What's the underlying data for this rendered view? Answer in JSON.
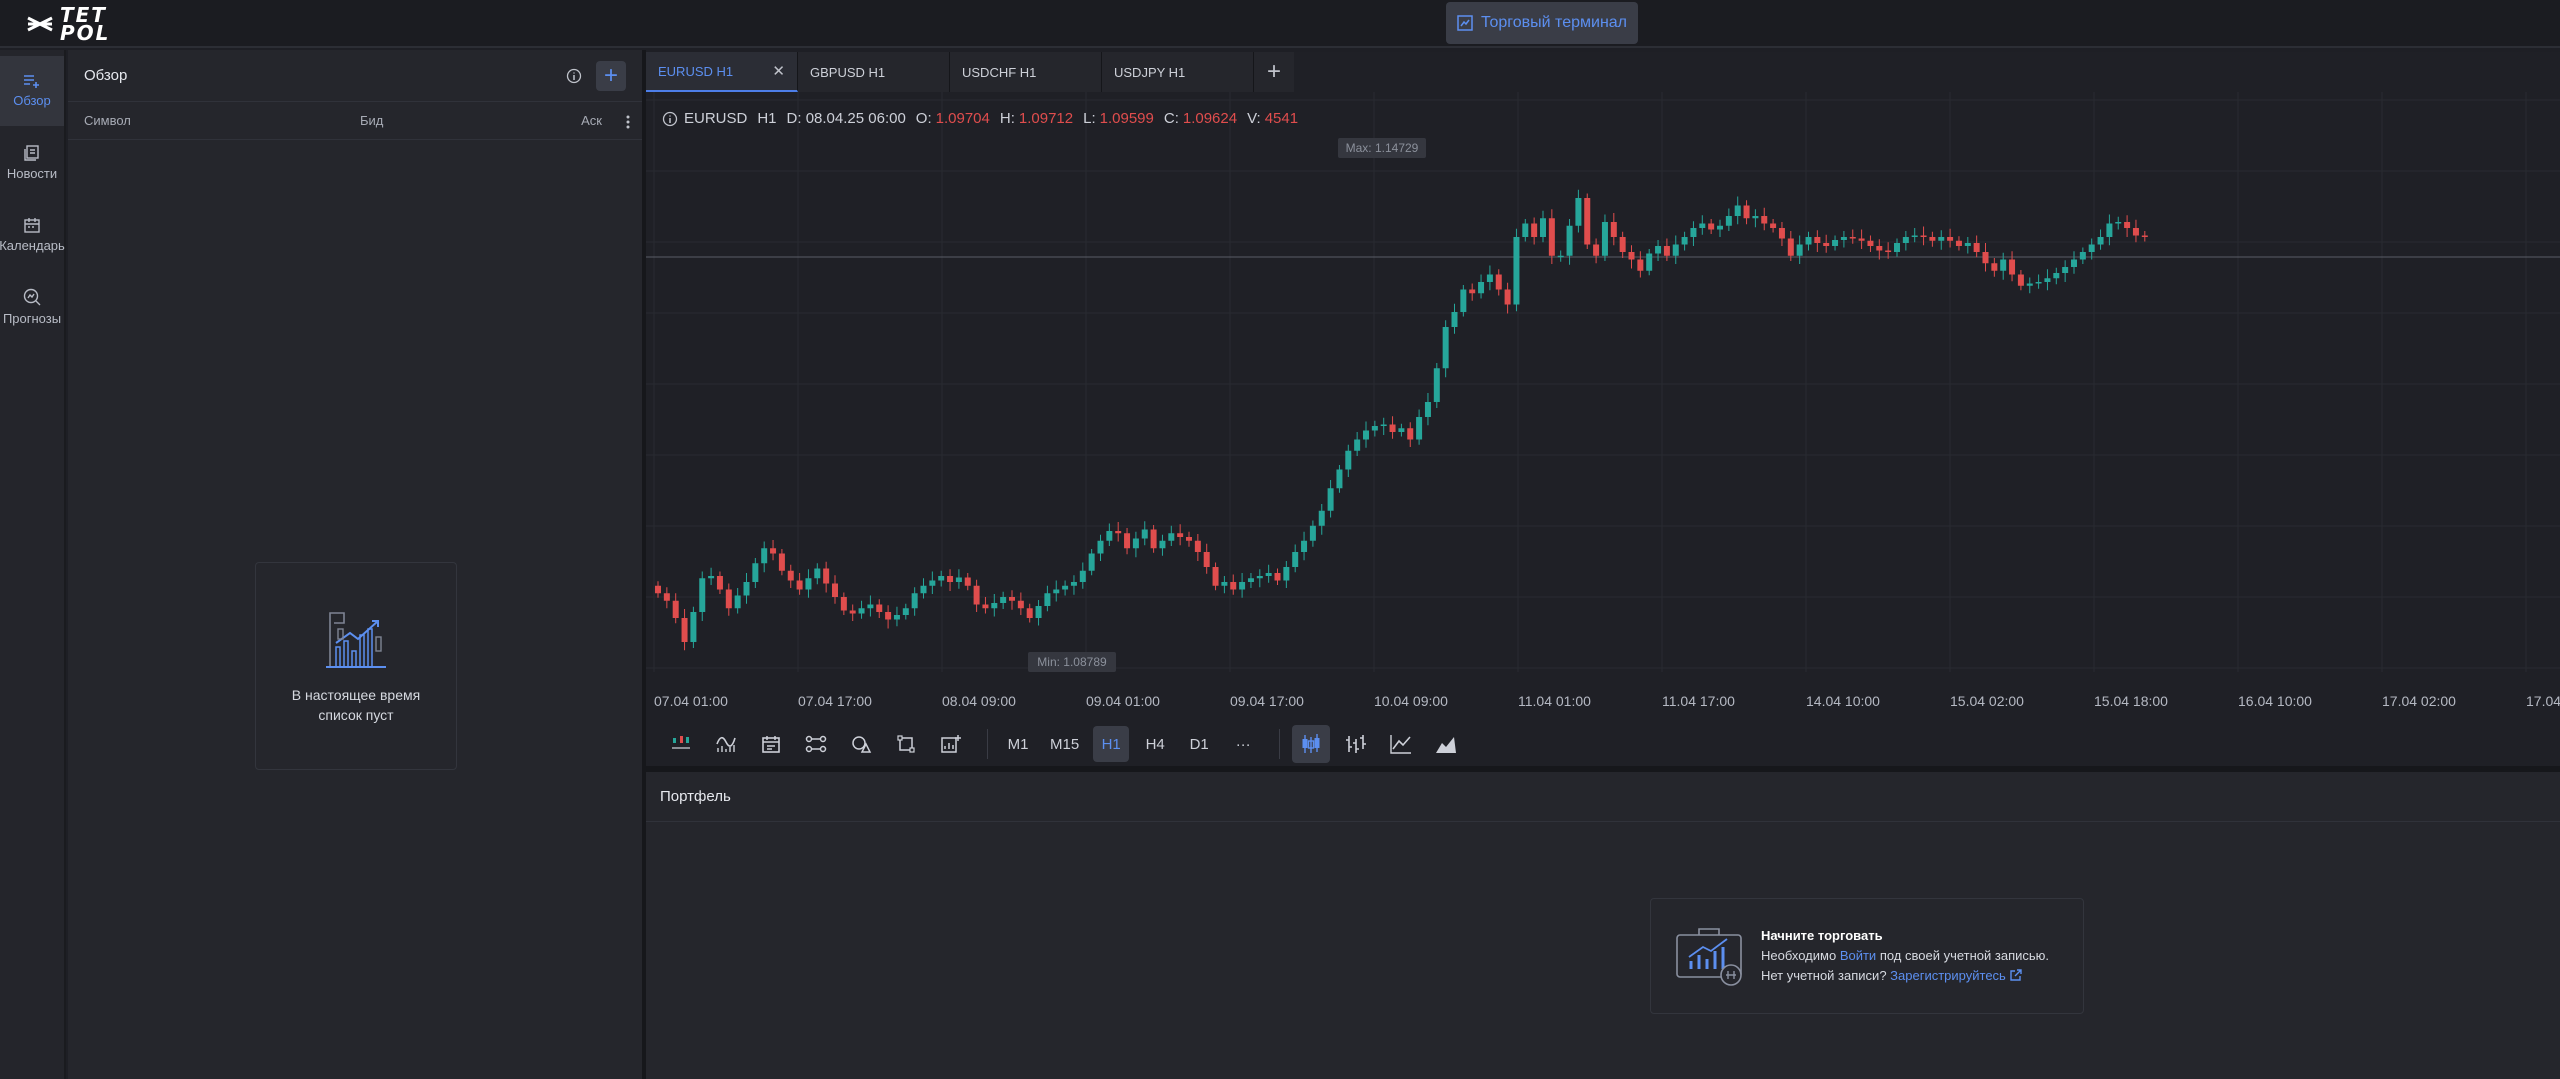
{
  "app": {
    "logo_line1": "TET",
    "logo_line2": "POL",
    "terminal_button": "Торговый терминал"
  },
  "nav": [
    {
      "label": "Обзор",
      "icon": "list-add-icon",
      "active": true
    },
    {
      "label": "Новости",
      "icon": "news-icon",
      "active": false
    },
    {
      "label": "Календарь",
      "icon": "calendar-icon",
      "active": false
    },
    {
      "label": "Прогнозы",
      "icon": "forecast-icon",
      "active": false
    }
  ],
  "watchlist": {
    "title": "Обзор",
    "columns": {
      "symbol": "Символ",
      "bid": "Бид",
      "ask": "Аск"
    },
    "empty_line1": "В настоящее время",
    "empty_line2": "список пуст"
  },
  "tabs": [
    {
      "label": "EURUSD H1",
      "active": true,
      "closable": true
    },
    {
      "label": "GBPUSD H1",
      "active": false,
      "closable": false
    },
    {
      "label": "USDCHF H1",
      "active": false,
      "closable": false
    },
    {
      "label": "USDJPY H1",
      "active": false,
      "closable": false
    }
  ],
  "ohlc": {
    "symbol": "EURUSD",
    "timeframe": "H1",
    "date": "D: 08.04.25 06:00",
    "o_label": "O:",
    "o": "1.09704",
    "h_label": "H:",
    "h": "1.09712",
    "l_label": "L:",
    "l": "1.09599",
    "c_label": "C:",
    "c": "1.09624",
    "v_label": "V:",
    "v": "4541"
  },
  "chart_data": {
    "type": "candlestick",
    "max_label": "Max: 1.14729",
    "min_label": "Min: 1.08789",
    "x_ticks": [
      "07.04 01:00",
      "07.04 17:00",
      "08.04 09:00",
      "09.04 01:00",
      "09.04 17:00",
      "10.04 09:00",
      "11.04 01:00",
      "11.04 17:00",
      "14.04 10:00",
      "15.04 02:00",
      "15.04 18:00",
      "16.04 10:00",
      "17.04 02:00",
      "17.04"
    ],
    "close": [
      1.0945,
      1.0935,
      1.0912,
      1.088,
      1.092,
      1.0965,
      1.0968,
      1.095,
      1.0925,
      1.0942,
      1.096,
      1.0985,
      1.1005,
      1.0998,
      1.0975,
      1.0962,
      1.095,
      1.0965,
      1.0978,
      1.0958,
      1.094,
      1.0922,
      1.0918,
      1.0925,
      1.093,
      1.092,
      1.091,
      1.0916,
      1.0925,
      1.0945,
      1.0955,
      1.0962,
      1.0968,
      1.096,
      1.0966,
      1.0955,
      1.093,
      1.0925,
      1.0932,
      1.094,
      1.0935,
      1.0925,
      1.0912,
      1.0928,
      1.0945,
      1.095,
      1.0955,
      1.096,
      1.0975,
      1.0998,
      1.1015,
      1.1028,
      1.1025,
      1.1005,
      1.1018,
      1.103,
      1.1005,
      1.1015,
      1.1025,
      1.102,
      1.1015,
      1.1,
      1.098,
      1.0955,
      1.096,
      1.095,
      1.096,
      1.0965,
      1.0968,
      1.0972,
      1.0962,
      1.098,
      1.1,
      1.1015,
      1.1035,
      1.1055,
      1.1085,
      1.111,
      1.1135,
      1.115,
      1.1162,
      1.1168,
      1.117,
      1.116,
      1.1165,
      1.115,
      1.118,
      1.12,
      1.1245,
      1.13,
      1.132,
      1.135,
      1.1345,
      1.136,
      1.137,
      1.135,
      1.133,
      1.142,
      1.1438,
      1.142,
      1.1445,
      1.1395,
      1.1395,
      1.1435,
      1.1472,
      1.141,
      1.1395,
      1.144,
      1.142,
      1.14,
      1.139,
      1.1375,
      1.1398,
      1.1408,
      1.1395,
      1.141,
      1.142,
      1.1432,
      1.1438,
      1.143,
      1.1435,
      1.1448,
      1.1462,
      1.1445,
      1.1448,
      1.1438,
      1.1432,
      1.1418,
      1.1395,
      1.141,
      1.142,
      1.1412,
      1.1408,
      1.1416,
      1.142,
      1.1418,
      1.1415,
      1.1408,
      1.1402,
      1.14,
      1.1412,
      1.142,
      1.1422,
      1.142,
      1.1415,
      1.142,
      1.1415,
      1.1408,
      1.1412,
      1.14,
      1.1385,
      1.1375,
      1.139,
      1.137,
      1.1355,
      1.1358,
      1.136,
      1.1365,
      1.1372,
      1.138,
      1.139,
      1.14,
      1.141,
      1.142,
      1.1438,
      1.144,
      1.1432,
      1.1422,
      1.142
    ]
  },
  "timeframes": [
    "M1",
    "M15",
    "H1",
    "H4",
    "D1",
    "···"
  ],
  "active_timeframe": "H1",
  "portfolio": {
    "title": "Портфель",
    "card_title": "Начните торговать",
    "line2_prefix": "Необходимо",
    "line2_link": "Войти",
    "line2_suffix": "под своей учетной записью.",
    "line3_prefix": "Нет учетной записи?",
    "line3_link": "Зарегистрируйтесь"
  },
  "colors": {
    "up": "#26a69a",
    "down": "#e04d4d",
    "accent": "#5c8ff0"
  }
}
